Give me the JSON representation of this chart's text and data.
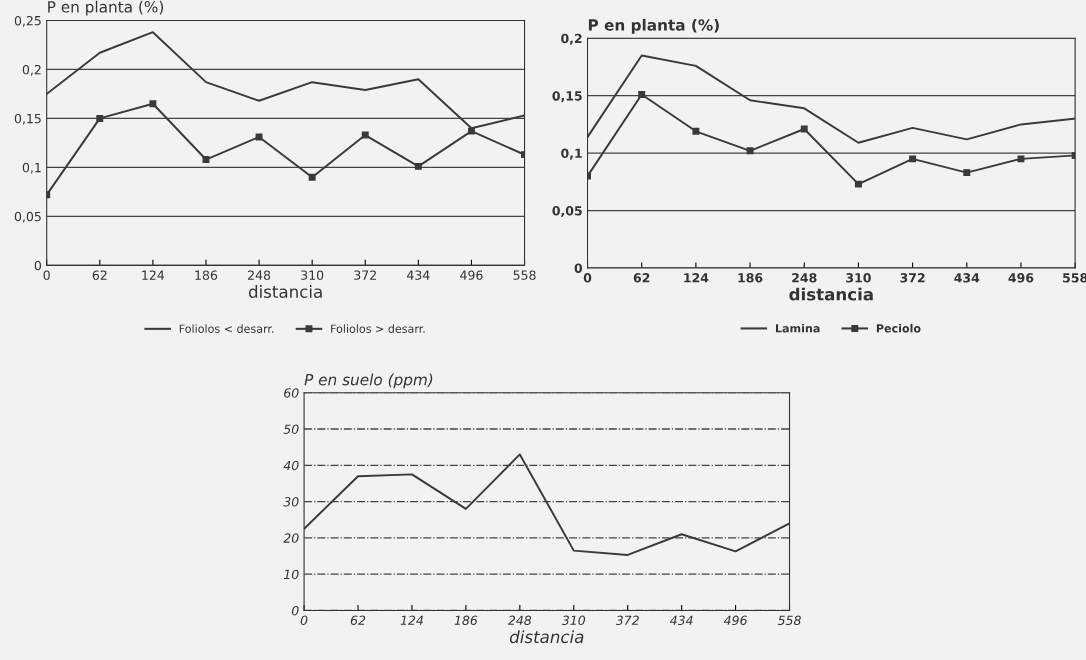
{
  "chart_data": [
    {
      "type": "line",
      "ylabel": "P en planta (%)",
      "xlabel": "distancia",
      "x": [
        0,
        62,
        124,
        186,
        248,
        310,
        372,
        434,
        496,
        558
      ],
      "series": [
        {
          "name": "Foliolos < desarr.",
          "color": "#3a3a3a",
          "marker": "none",
          "values": [
            0.175,
            0.217,
            0.238,
            0.187,
            0.168,
            0.187,
            0.179,
            0.19,
            0.14,
            0.153
          ]
        },
        {
          "name": "Foliolos > desarr.",
          "color": "#3a3a3a",
          "marker": "square",
          "values": [
            0.072,
            0.15,
            0.165,
            0.108,
            0.131,
            0.09,
            0.133,
            0.101,
            0.137,
            0.113
          ]
        }
      ],
      "xlim": [
        0,
        558
      ],
      "xticks": [
        0,
        62,
        124,
        186,
        248,
        310,
        372,
        434,
        496,
        558
      ],
      "ylim": [
        0,
        0.25
      ],
      "yticks": [
        {
          "value": 0,
          "label": "0"
        },
        {
          "value": 0.05,
          "label": "0,05"
        },
        {
          "value": 0.1,
          "label": "0,1"
        },
        {
          "value": 0.15,
          "label": "0,15"
        },
        {
          "value": 0.2,
          "label": "0,2"
        },
        {
          "value": 0.25,
          "label": "0,25"
        }
      ],
      "grid": "y",
      "legend": "bottom"
    },
    {
      "type": "line",
      "ylabel": "P en planta (%)",
      "xlabel": "distancia",
      "x": [
        0,
        62,
        124,
        186,
        248,
        310,
        372,
        434,
        496,
        558
      ],
      "series": [
        {
          "name": "Lamina",
          "color": "#3a3a3a",
          "marker": "none",
          "values": [
            0.114,
            0.185,
            0.176,
            0.146,
            0.139,
            0.109,
            0.122,
            0.112,
            0.125,
            0.13
          ]
        },
        {
          "name": "Peciolo",
          "color": "#3a3a3a",
          "marker": "square",
          "values": [
            0.08,
            0.151,
            0.119,
            0.102,
            0.121,
            0.073,
            0.095,
            0.083,
            0.095,
            0.098
          ]
        }
      ],
      "xlim": [
        0,
        558
      ],
      "xticks": [
        0,
        62,
        124,
        186,
        248,
        310,
        372,
        434,
        496,
        558
      ],
      "ylim": [
        0,
        0.2
      ],
      "yticks": [
        {
          "value": 0,
          "label": "0"
        },
        {
          "value": 0.05,
          "label": "0,05"
        },
        {
          "value": 0.1,
          "label": "0,1"
        },
        {
          "value": 0.15,
          "label": "0,15"
        },
        {
          "value": 0.2,
          "label": "0,2"
        }
      ],
      "grid": "y",
      "legend": "bottom"
    },
    {
      "type": "line",
      "ylabel": "P en suelo (ppm)",
      "xlabel": "distancia",
      "x": [
        0,
        62,
        124,
        186,
        248,
        310,
        372,
        434,
        496,
        558
      ],
      "series": [
        {
          "color": "#3a3a3a",
          "marker": "none",
          "values": [
            22.5,
            37,
            37.5,
            28,
            43,
            16.5,
            15.3,
            21,
            16.3,
            24
          ]
        }
      ],
      "xlim": [
        0,
        558
      ],
      "xticks": [
        0,
        62,
        124,
        186,
        248,
        310,
        372,
        434,
        496,
        558
      ],
      "ylim": [
        0,
        60
      ],
      "yticks": [
        0,
        10,
        20,
        30,
        40,
        50,
        60
      ],
      "grid": "y"
    }
  ]
}
